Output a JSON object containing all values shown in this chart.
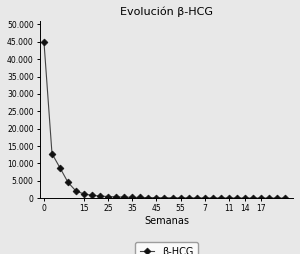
{
  "title": "Evolución β-HCG",
  "xlabel": "Semanas",
  "legend_label": "β-HCG",
  "x_values": [
    0,
    1,
    2,
    3,
    4,
    5,
    6,
    7,
    8,
    9,
    10,
    11,
    12,
    13,
    14,
    15,
    16,
    17,
    18,
    19,
    20,
    21,
    22,
    23,
    24,
    25,
    26,
    27,
    28,
    29,
    30
  ],
  "y_values": [
    45000,
    12800,
    8700,
    4500,
    2000,
    1200,
    800,
    600,
    450,
    350,
    280,
    220,
    180,
    150,
    130,
    110,
    95,
    85,
    75,
    65,
    58,
    52,
    46,
    40,
    35,
    30,
    25,
    20,
    18,
    15,
    12
  ],
  "xtick_positions": [
    0,
    5,
    8,
    11,
    14,
    17,
    20,
    23,
    25,
    27
  ],
  "xtick_labels": [
    "0",
    "15",
    "25",
    "35",
    "45",
    "55",
    "7",
    "11",
    "14",
    "17"
  ],
  "ytick_values": [
    0,
    5000,
    10000,
    15000,
    20000,
    25000,
    30000,
    35000,
    40000,
    45000,
    50000
  ],
  "ytick_labels": [
    "0",
    "5.000",
    "10.000",
    "15.000",
    "20.000",
    "25.000",
    "30.000",
    "35.000",
    "40.000",
    "45.000",
    "50.000"
  ],
  "ylim": [
    0,
    51000
  ],
  "xlim": [
    -0.5,
    31.0
  ],
  "line_color": "#444444",
  "marker": "D",
  "marker_color": "#111111",
  "marker_size": 3.5,
  "background_color": "#e8e8e8",
  "plot_bg_color": "#e8e8e8",
  "legend_box_color": "#ffffff",
  "title_fontsize": 8,
  "axis_label_fontsize": 7,
  "tick_fontsize": 5.5,
  "legend_fontsize": 7
}
